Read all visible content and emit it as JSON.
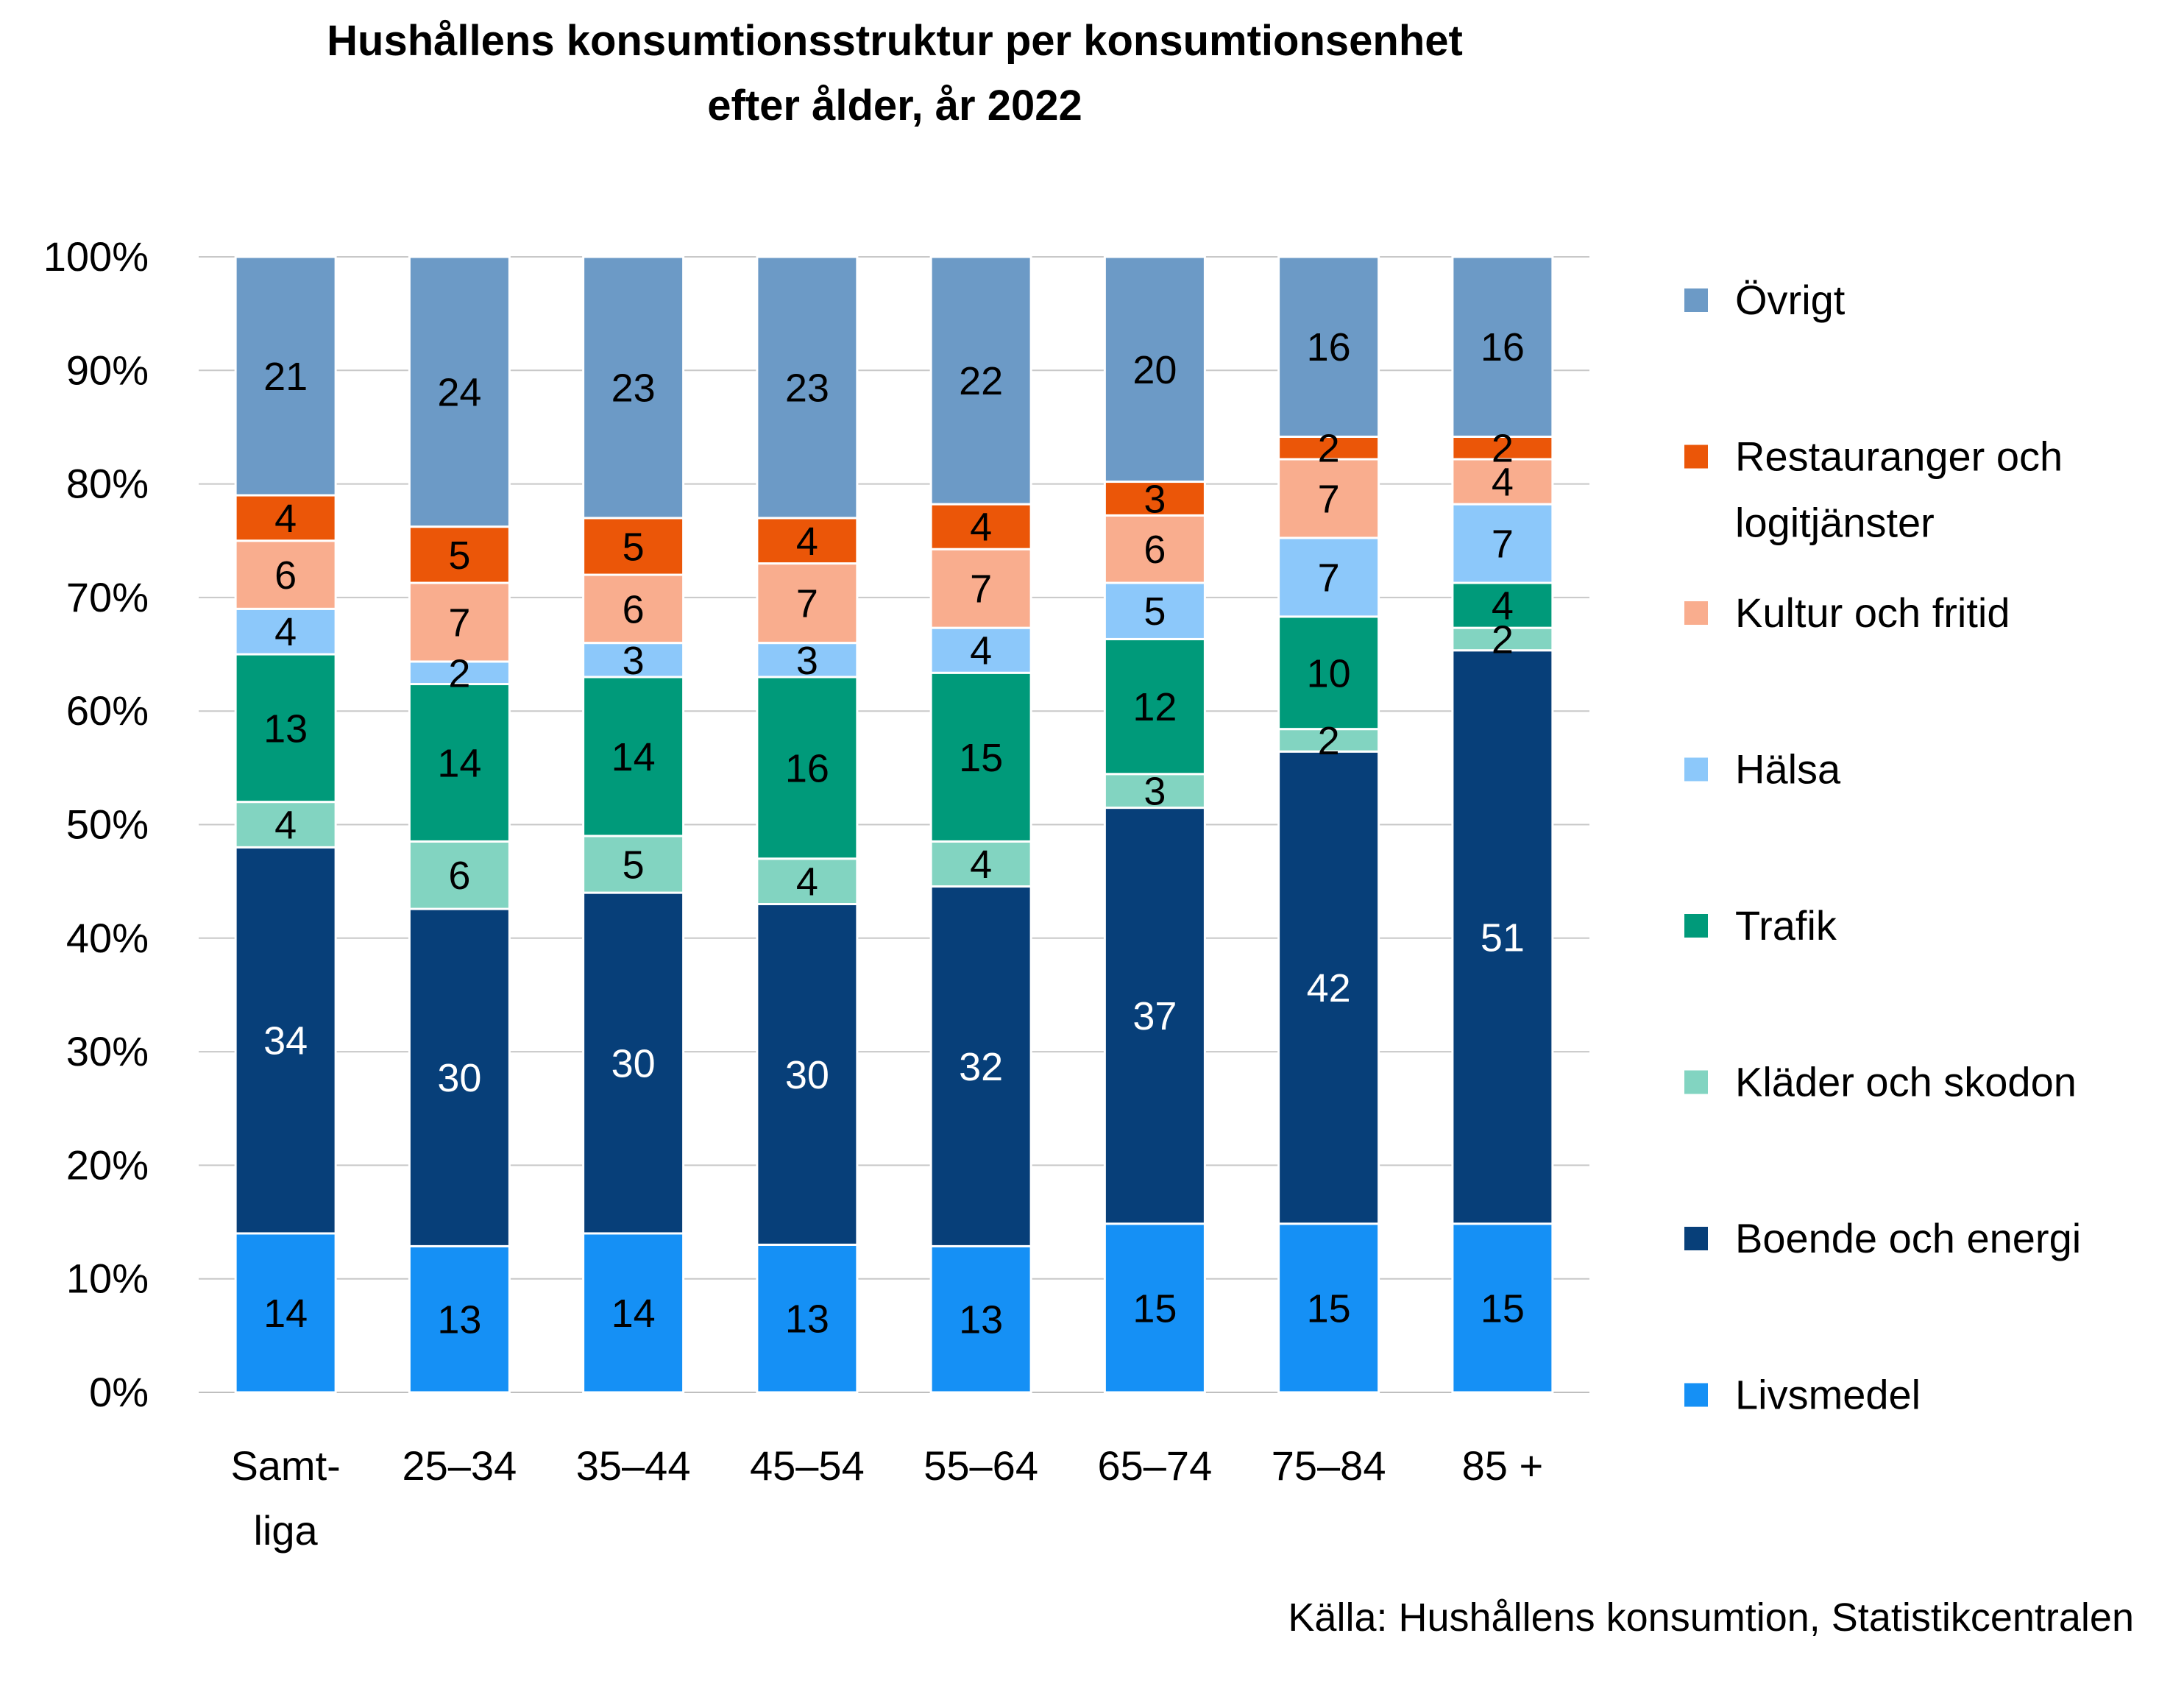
{
  "chart_data": {
    "type": "bar",
    "stacked": true,
    "title_lines": [
      "Hushållens konsumtionsstruktur per konsumtionsenhet",
      "efter ålder, år 2022"
    ],
    "source": "Källa: Hushållens konsumtion, Statistikcentralen",
    "categories": [
      [
        "Samt-",
        "liga"
      ],
      [
        "25–34"
      ],
      [
        "35–44"
      ],
      [
        "45–54"
      ],
      [
        "55–64"
      ],
      [
        "65–74"
      ],
      [
        "75–84"
      ],
      [
        "85 +"
      ]
    ],
    "y_ticks": [
      "0%",
      "10%",
      "20%",
      "30%",
      "40%",
      "50%",
      "60%",
      "70%",
      "80%",
      "90%",
      "100%"
    ],
    "ylim": [
      0,
      100
    ],
    "grid": true,
    "legend_position": "right",
    "series": [
      {
        "name": "Livsmedel",
        "color": "#1590F5",
        "label_color": "#000000",
        "values": [
          14,
          13,
          14,
          13,
          13,
          15,
          15,
          15
        ]
      },
      {
        "name": "Boende och energi",
        "color": "#073F79",
        "label_color": "#FFFFFF",
        "values": [
          34,
          30,
          30,
          30,
          32,
          37,
          42,
          51
        ]
      },
      {
        "name": "Kläder och skodon",
        "color": "#82D4C1",
        "label_color": "#000000",
        "values": [
          4,
          6,
          5,
          4,
          4,
          3,
          2,
          2
        ]
      },
      {
        "name": "Trafik",
        "color": "#009A7A",
        "label_color": "#000000",
        "values": [
          13,
          14,
          14,
          16,
          15,
          12,
          10,
          4
        ]
      },
      {
        "name": "Hälsa",
        "color": "#8CC8FA",
        "label_color": "#000000",
        "values": [
          4,
          2,
          3,
          3,
          4,
          5,
          7,
          7
        ]
      },
      {
        "name": "Kultur och fritid",
        "color": "#F9AD8E",
        "label_color": "#000000",
        "values": [
          6,
          7,
          6,
          7,
          7,
          6,
          7,
          4
        ]
      },
      {
        "name": "Restauranger och logitjänster",
        "legend_lines": [
          "Restauranger och",
          "logitjänster"
        ],
        "color": "#EB5608",
        "label_color": "#000000",
        "values": [
          4,
          5,
          5,
          4,
          4,
          3,
          2,
          2
        ]
      },
      {
        "name": "Övrigt",
        "color": "#6C9AC6",
        "label_color": "#000000",
        "values": [
          21,
          24,
          23,
          23,
          22,
          20,
          16,
          16
        ]
      }
    ]
  }
}
